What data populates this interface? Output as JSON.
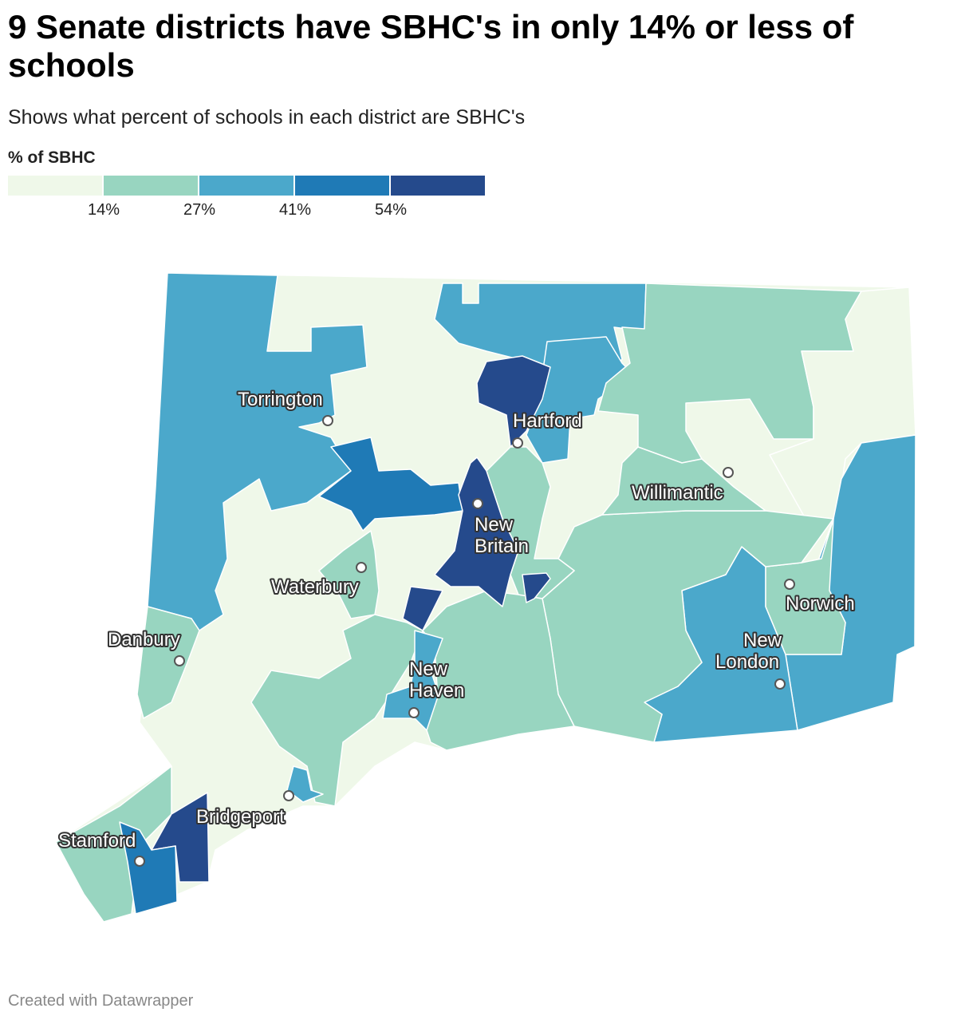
{
  "title": "9 Senate districts have SBHC's in only 14% or less of schools",
  "subtitle": "Shows what percent of schools in each district are SBHC's",
  "legend": {
    "title": "% of SBHC",
    "colors": [
      "#eff8e9",
      "#98d5c0",
      "#4ba8cb",
      "#1f7ab6",
      "#254a8c"
    ],
    "ticks": [
      "14%",
      "27%",
      "41%",
      "54%"
    ]
  },
  "cities": [
    "Torrington",
    "Hartford",
    "Willimantic",
    "New Britain",
    "Waterbury",
    "Norwich",
    "Danbury",
    "New London",
    "New Haven",
    "Bridgeport",
    "Stamford"
  ],
  "footer": "Created with Datawrapper"
}
